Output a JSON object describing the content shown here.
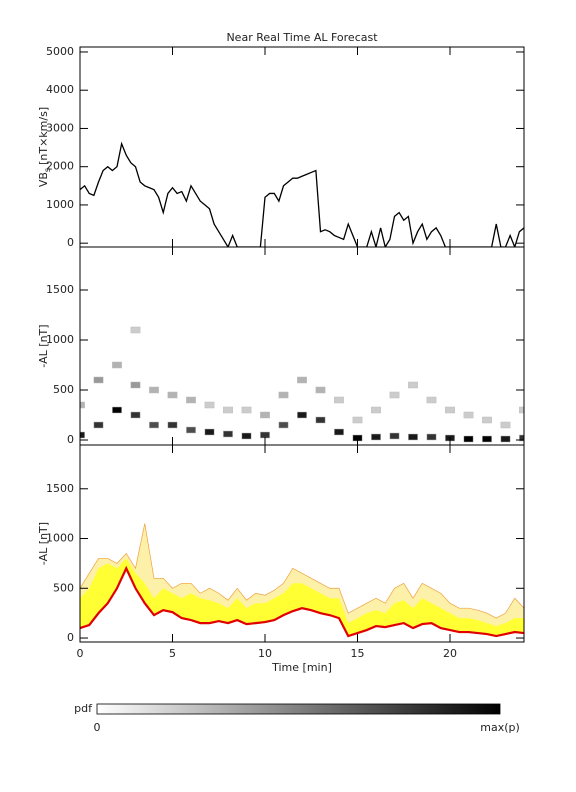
{
  "chart_data": [
    {
      "type": "line",
      "title": "Near Real Time AL Forecast",
      "ylabel": {
        "main": "VB",
        "sub": "s",
        "unit": "[nT×km/s]"
      },
      "color": "#000000",
      "xlim": [
        0,
        24
      ],
      "xticks": [
        0,
        5,
        10,
        15,
        20
      ],
      "ylim": [
        -100,
        5130
      ],
      "yticks": [
        0,
        1000,
        2000,
        3000,
        4000,
        5000
      ],
      "x": [
        0,
        0.25,
        0.5,
        0.75,
        1,
        1.25,
        1.5,
        1.75,
        2,
        2.25,
        2.5,
        2.75,
        3,
        3.25,
        3.5,
        3.75,
        4,
        4.25,
        4.5,
        4.75,
        5,
        5.25,
        5.5,
        5.75,
        6,
        6.25,
        6.5,
        6.75,
        7,
        7.25,
        7.5,
        7.75,
        8,
        8.25,
        8.5,
        8.75,
        9,
        9.25,
        9.5,
        9.75,
        10,
        10.25,
        10.5,
        10.75,
        11,
        11.25,
        11.5,
        11.75,
        12,
        12.25,
        12.5,
        12.75,
        13,
        13.25,
        13.5,
        13.75,
        14,
        14.25,
        14.5,
        14.75,
        15,
        15.25,
        15.5,
        15.75,
        16,
        16.25,
        16.5,
        16.75,
        17,
        17.25,
        17.5,
        17.75,
        18,
        18.25,
        18.5,
        18.75,
        19,
        19.25,
        19.5,
        19.75,
        20,
        20.25,
        20.5,
        20.75,
        21,
        21.25,
        21.5,
        21.75,
        22,
        22.25,
        22.5,
        22.75,
        23,
        23.25,
        23.5,
        23.75,
        24
      ],
      "values": [
        1400,
        1500,
        1300,
        1250,
        1600,
        1900,
        2000,
        1900,
        2000,
        2600,
        2300,
        2100,
        2000,
        1600,
        1500,
        1450,
        1400,
        1200,
        800,
        1300,
        1450,
        1300,
        1350,
        1100,
        1500,
        1300,
        1100,
        1000,
        900,
        500,
        300,
        100,
        -100,
        200,
        -100,
        -100,
        -100,
        -100,
        -100,
        -100,
        1200,
        1300,
        1300,
        1100,
        1500,
        1600,
        1700,
        1700,
        1750,
        1800,
        1850,
        1900,
        300,
        350,
        300,
        200,
        150,
        100,
        500,
        200,
        -100,
        -100,
        -100,
        300,
        -100,
        400,
        -100,
        100,
        700,
        800,
        600,
        700,
        0,
        300,
        500,
        100,
        300,
        400,
        200,
        -100,
        -100,
        -100,
        -100,
        -100,
        -100,
        -100,
        -100,
        -100,
        -100,
        -100,
        500,
        -100,
        -100,
        200,
        -100,
        300,
        400
      ]
    },
    {
      "type": "heatmap",
      "ylabel": "-AL [nT]",
      "xlim": [
        0,
        24
      ],
      "xticks": [
        0,
        5,
        10,
        15,
        20
      ],
      "ylim": [
        -50,
        1930
      ],
      "yticks": [
        0,
        500,
        1000,
        1500
      ],
      "x": [
        0,
        0,
        1,
        1,
        2,
        2,
        3,
        3,
        3,
        4,
        4,
        5,
        5,
        6,
        6,
        7,
        7,
        8,
        8,
        9,
        9,
        10,
        10,
        11,
        11,
        12,
        12,
        13,
        13,
        14,
        14,
        15,
        15,
        16,
        16,
        17,
        17,
        18,
        18,
        19,
        19,
        20,
        20,
        21,
        21,
        22,
        22,
        23,
        23,
        24,
        24
      ],
      "y": [
        50,
        350,
        150,
        600,
        300,
        750,
        250,
        550,
        1100,
        150,
        500,
        150,
        450,
        100,
        400,
        80,
        350,
        60,
        300,
        40,
        300,
        50,
        250,
        150,
        450,
        250,
        600,
        200,
        500,
        80,
        400,
        20,
        200,
        30,
        300,
        40,
        450,
        30,
        550,
        30,
        400,
        20,
        300,
        10,
        250,
        10,
        200,
        10,
        150,
        20,
        300
      ],
      "z": [
        0.9,
        0.3,
        0.8,
        0.4,
        1.0,
        0.3,
        0.8,
        0.4,
        0.2,
        0.7,
        0.3,
        0.8,
        0.3,
        0.7,
        0.3,
        0.9,
        0.2,
        0.8,
        0.2,
        0.9,
        0.2,
        0.8,
        0.3,
        0.7,
        0.3,
        0.9,
        0.3,
        0.8,
        0.3,
        0.9,
        0.2,
        1.0,
        0.2,
        0.9,
        0.2,
        0.8,
        0.2,
        0.9,
        0.2,
        0.8,
        0.2,
        0.9,
        0.2,
        1.0,
        0.2,
        1.0,
        0.2,
        0.9,
        0.2,
        0.8,
        0.2
      ]
    },
    {
      "type": "band",
      "ylabel": "-AL [nT]",
      "xlabel": "Time [min]",
      "xlim": [
        0,
        24
      ],
      "xticks": [
        0,
        5,
        10,
        15,
        20
      ],
      "ylim": [
        -40,
        1940
      ],
      "yticks": [
        0,
        500,
        1000,
        1500
      ],
      "x": [
        0,
        0.5,
        1,
        1.5,
        2,
        2.5,
        3,
        3.5,
        4,
        4.5,
        5,
        5.5,
        6,
        6.5,
        7,
        7.5,
        8,
        8.5,
        9,
        9.5,
        10,
        10.5,
        11,
        11.5,
        12,
        12.5,
        13,
        13.5,
        14,
        14.5,
        15,
        15.5,
        16,
        16.5,
        17,
        17.5,
        18,
        18.5,
        19,
        19.5,
        20,
        20.5,
        21,
        21.5,
        22,
        22.5,
        23,
        23.5,
        24
      ],
      "series": [
        {
          "color": "#fdf0a8",
          "values": [
            500,
            650,
            800,
            800,
            750,
            850,
            700,
            1150,
            600,
            600,
            500,
            550,
            550,
            450,
            500,
            450,
            380,
            500,
            380,
            450,
            430,
            480,
            550,
            700,
            650,
            600,
            550,
            500,
            500,
            250,
            300,
            350,
            400,
            350,
            500,
            550,
            400,
            550,
            500,
            450,
            350,
            300,
            300,
            280,
            250,
            200,
            250,
            400,
            300
          ]
        },
        {
          "color": "#ffff33",
          "values": [
            400,
            500,
            700,
            750,
            700,
            800,
            650,
            550,
            400,
            500,
            450,
            400,
            450,
            400,
            380,
            350,
            300,
            400,
            300,
            350,
            350,
            400,
            450,
            550,
            550,
            500,
            450,
            400,
            400,
            150,
            200,
            250,
            280,
            250,
            350,
            380,
            300,
            400,
            350,
            300,
            250,
            200,
            200,
            180,
            150,
            120,
            150,
            200,
            200
          ]
        },
        {
          "color": "#e00000",
          "values": [
            100,
            130,
            250,
            350,
            500,
            700,
            500,
            350,
            230,
            280,
            260,
            200,
            180,
            150,
            150,
            170,
            150,
            180,
            140,
            150,
            160,
            180,
            230,
            270,
            300,
            280,
            250,
            230,
            200,
            20,
            50,
            80,
            120,
            110,
            130,
            150,
            100,
            140,
            150,
            100,
            80,
            60,
            60,
            50,
            40,
            20,
            40,
            60,
            50
          ]
        }
      ]
    }
  ],
  "colorbar": {
    "label": "pdf",
    "min_label": "0",
    "max_label": "max(p)"
  }
}
